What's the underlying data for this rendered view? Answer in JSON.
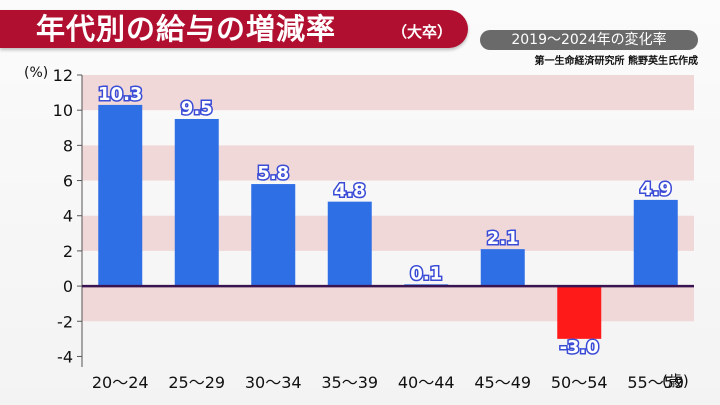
{
  "header": {
    "title": "年代別の給与の増減率",
    "title_sub": "（大卒）",
    "period": "2019〜2024年の変化率",
    "source": "第一生命経済研究所 熊野英生氏作成"
  },
  "colors": {
    "title_band": "#b00f2f",
    "positive_bar": "#2f6fe6",
    "negative_bar": "#ff1a1a",
    "stripe": "#f1d8d8",
    "zero_line": "#3a1450",
    "label_text": "#ffffff",
    "label_stroke": "#3a4bd6"
  },
  "chart_data": {
    "type": "bar",
    "categories": [
      "20〜24",
      "25〜29",
      "30〜34",
      "35〜39",
      "40〜44",
      "45〜49",
      "50〜54",
      "55〜59"
    ],
    "values": [
      10.3,
      9.5,
      5.8,
      4.8,
      0.1,
      2.1,
      -3.0,
      4.9
    ],
    "value_labels": [
      "10.3",
      "9.5",
      "5.8",
      "4.8",
      "0.1",
      "2.1",
      "-3.0",
      "4.9"
    ],
    "y_ticks": [
      "12",
      "10",
      "8",
      "6",
      "4",
      "2",
      "0",
      "-2",
      "-4"
    ],
    "y_tick_values": [
      12,
      10,
      8,
      6,
      4,
      2,
      0,
      -2,
      -4
    ],
    "ylim": [
      -4.6,
      12
    ],
    "ylabel": "(%)",
    "xlabel": "(歳)",
    "grid": "horizontal stripes"
  }
}
